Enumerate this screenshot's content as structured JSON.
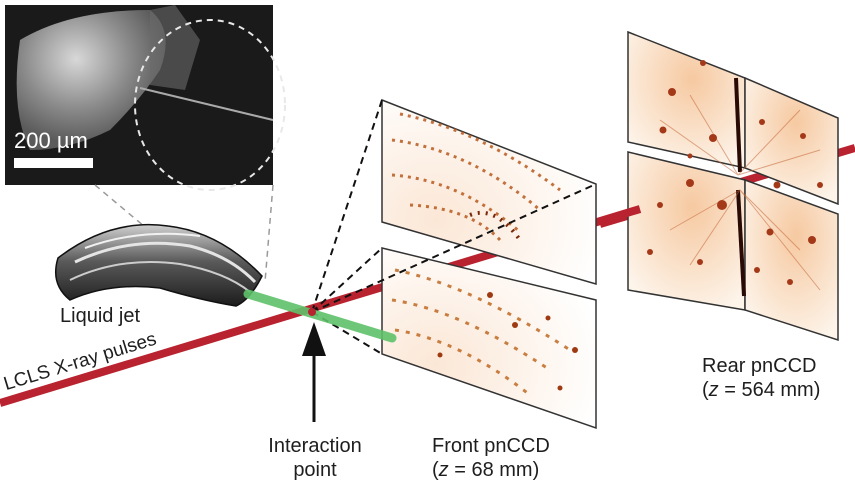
{
  "labels": {
    "scale_bar": "200 µm",
    "liquid_jet": "Liquid jet",
    "xray": "LCLS X-ray pulses",
    "interaction_1": "Interaction",
    "interaction_2": "point",
    "front_1": "Front pnCCD",
    "front_2_pre": "(",
    "front_2_var": "z",
    "front_2_post": " = 68 mm)",
    "rear_1": "Rear pnCCD",
    "rear_2_pre": "(",
    "rear_2_var": "z",
    "rear_2_post": " = 564 mm)"
  },
  "colors": {
    "beam": "#b8232f",
    "jet_stream": "#5fc26a",
    "diffraction_spot": "#c0581a",
    "detector_glow": "#f7dcc0",
    "inset_bg": "#1a1a1a"
  }
}
